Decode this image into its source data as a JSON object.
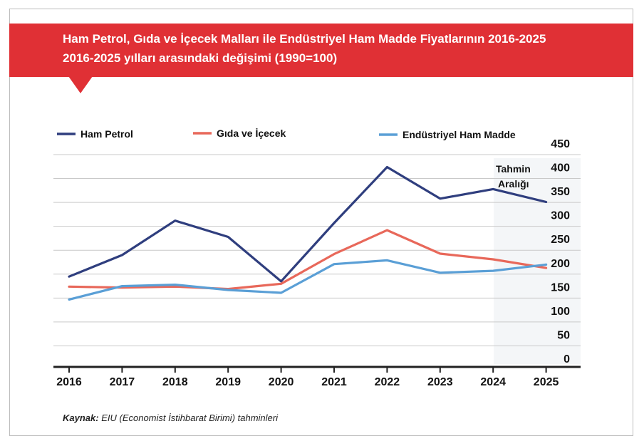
{
  "title_line1": "Ham Petrol, Gıda ve İçecek Malları ile Endüstriyel Ham Madde Fiyatlarının 2016-2025",
  "title_line2": "2016-2025 yılları arasındaki değişimi (1990=100)",
  "source_label": "Kaynak:",
  "source_text": "EIU (Economist İstihbarat Birimi) tahminleri",
  "forecast_label_line1": "Tahmin",
  "forecast_label_line2": "Aralığı",
  "colors": {
    "banner": "#e03035",
    "ham_petrol": "#2f3e7e",
    "gida": "#e8685a",
    "endustriyel": "#5a9fd6",
    "grid": "#c9c9c9",
    "axis": "#222222"
  },
  "chart_data": {
    "type": "line",
    "x": [
      "2016",
      "2017",
      "2018",
      "2019",
      "2020",
      "2021",
      "2022",
      "2023",
      "2024",
      "2025"
    ],
    "yticks": [
      "450",
      "400",
      "350",
      "300",
      "250",
      "200",
      "150",
      "100",
      "50",
      "0"
    ],
    "ylim": [
      0,
      450
    ],
    "grid": true,
    "legend_position": "top",
    "series": [
      {
        "name": "Ham Petrol",
        "key": "ham_petrol",
        "values": [
          183,
          228,
          300,
          266,
          173,
          295,
          412,
          346,
          366,
          339
        ]
      },
      {
        "name": "Gıda ve İçecek",
        "key": "gida",
        "values": [
          162,
          160,
          162,
          157,
          168,
          230,
          280,
          231,
          219,
          201
        ]
      },
      {
        "name": "Endüstriyel Ham Madde",
        "key": "endustriyel",
        "values": [
          135,
          163,
          166,
          155,
          149,
          209,
          217,
          191,
          195,
          208
        ]
      }
    ]
  }
}
